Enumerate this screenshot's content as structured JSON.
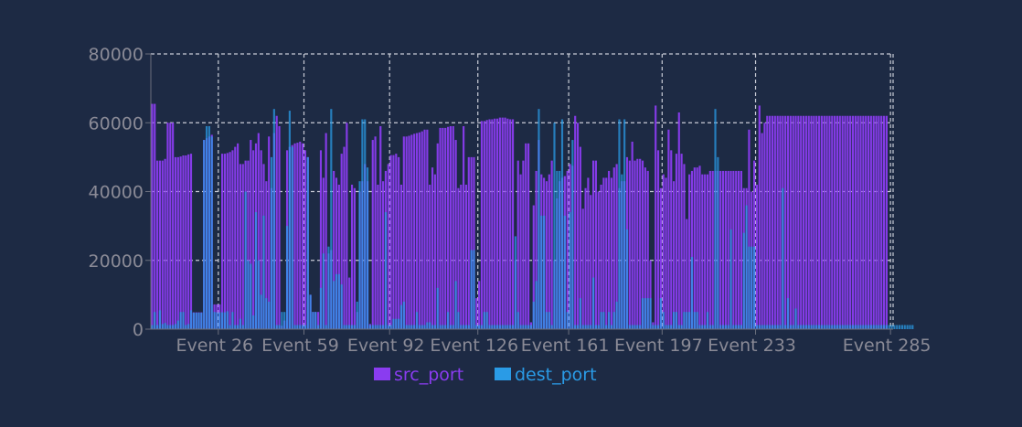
{
  "chart_data": {
    "type": "bar",
    "grid": true,
    "legend_position": "bottom-center",
    "ylim": [
      0,
      80000
    ],
    "y_ticks": [
      0,
      20000,
      40000,
      60000,
      80000
    ],
    "x_tick_labels": [
      "Event 26",
      "Event 59",
      "Event 92",
      "Event 126",
      "Event 161",
      "Event 197",
      "Event 233",
      "Event 285"
    ],
    "x_tick_index": [
      26,
      59,
      92,
      126,
      161,
      197,
      233,
      285
    ],
    "event_count": 286,
    "series": [
      {
        "name": "src_port",
        "color": "#8a3cf0",
        "values": [
          65500,
          65500,
          49000,
          49000,
          49000,
          49500,
          60000,
          60000,
          60000,
          50000,
          50000,
          50200,
          50500,
          50500,
          50800,
          51000,
          4900,
          4900,
          4900,
          4900,
          55000,
          55500,
          56000,
          56500,
          7200,
          7200,
          7200,
          51000,
          51000,
          51200,
          51500,
          52000,
          53000,
          54000,
          48000,
          48000,
          49000,
          49000,
          55000,
          52000,
          54000,
          57000,
          52000,
          48000,
          43000,
          56000,
          41000,
          57000,
          62000,
          59000,
          1000,
          2500,
          52000,
          53000,
          53500,
          54000,
          54200,
          54500,
          54000,
          52000,
          50000,
          10000,
          5000,
          5000,
          5000,
          52000,
          44000,
          57000,
          22000,
          23000,
          46000,
          44000,
          42000,
          51000,
          53000,
          60000,
          15000,
          42000,
          41000,
          5000,
          40000,
          43000,
          48000,
          43000,
          1500,
          55000,
          56000,
          42000,
          59000,
          43000,
          46000,
          48000,
          50600,
          50600,
          51000,
          50000,
          42000,
          56000,
          56000,
          56200,
          56500,
          56800,
          57000,
          57200,
          57500,
          58000,
          58000,
          42000,
          47000,
          45000,
          54000,
          58500,
          58500,
          58500,
          58800,
          59000,
          59000,
          55000,
          41000,
          42000,
          59000,
          42000,
          50000,
          50000,
          50000,
          9000,
          14000,
          60500,
          60500,
          60800,
          61000,
          61000,
          61200,
          61200,
          61500,
          61500,
          61500,
          61200,
          61000,
          61000,
          20000,
          49000,
          45000,
          49000,
          54000,
          54000,
          2000,
          36000,
          46000,
          55000,
          45000,
          44000,
          43000,
          45000,
          49000,
          20000,
          38000,
          43000,
          44000,
          44500,
          46000,
          48000,
          47500,
          62000,
          60000,
          53000,
          35000,
          41000,
          44000,
          39000,
          49000,
          49000,
          40000,
          42000,
          44000,
          44000,
          46000,
          44000,
          47000,
          48000,
          41000,
          43000,
          43000,
          50000,
          49000,
          54500,
          49000,
          49500,
          49500,
          49000,
          47000,
          46000,
          20000,
          2000,
          65000,
          52000,
          41000,
          45000,
          44000,
          58000,
          52000,
          43000,
          51000,
          63000,
          51000,
          48000,
          32000,
          45000,
          46000,
          47000,
          47000,
          47500,
          45000,
          45000,
          45000,
          46000,
          46000,
          46000,
          46000,
          46000,
          46000,
          46000,
          46000,
          46000,
          46000,
          46000,
          46000,
          46000,
          41000,
          41000,
          58000,
          40000,
          49000,
          42000,
          65000,
          57000,
          60000,
          62000,
          62000,
          62000,
          62000,
          62000,
          62000,
          62000,
          62000,
          62000,
          62000,
          62000,
          62000,
          62000,
          62000,
          62000,
          62000,
          62000,
          62000,
          62000,
          62000,
          62000,
          62000,
          62000,
          62000,
          62000,
          62000,
          62000,
          62000,
          62000,
          62000,
          62000,
          62000,
          62000,
          62000,
          62000,
          62000,
          62000,
          62000,
          62000,
          62000,
          62000,
          62000,
          62000,
          62000,
          62000,
          62000,
          62000
        ]
      },
      {
        "name": "dest_port",
        "color": "#2a9be6",
        "values": [
          1200,
          5000,
          1200,
          5500,
          1500,
          1800,
          1200,
          1200,
          1200,
          1500,
          2500,
          5000,
          5000,
          1200,
          1500,
          5500,
          4800,
          4800,
          4800,
          4800,
          55000,
          59000,
          59000,
          56000,
          5000,
          4900,
          4900,
          4900,
          4900,
          5200,
          1200,
          5000,
          1200,
          1200,
          3000,
          1200,
          40000,
          20000,
          19000,
          4000,
          34000,
          20000,
          10000,
          33000,
          9000,
          8000,
          50000,
          64000,
          1200,
          1200,
          5000,
          5000,
          30000,
          63500,
          53000,
          1200,
          1200,
          1200,
          1200,
          1200,
          50000,
          10000,
          5000,
          5000,
          1200,
          12000,
          22000,
          1200,
          24000,
          64000,
          14000,
          16000,
          16000,
          13000,
          1200,
          1200,
          1200,
          1200,
          1200,
          8000,
          43000,
          61000,
          61000,
          47000,
          1200,
          1200,
          1200,
          1200,
          1200,
          1200,
          34000,
          1200,
          1200,
          3000,
          3000,
          3000,
          7000,
          8000,
          1200,
          1200,
          1200,
          1200,
          5000,
          1200,
          1200,
          1200,
          2000,
          2000,
          1200,
          1200,
          12000,
          1200,
          1200,
          1200,
          5000,
          1200,
          1200,
          14000,
          5000,
          1200,
          1200,
          1200,
          1200,
          23000,
          23000,
          1200,
          1200,
          1200,
          5000,
          5000,
          1200,
          1200,
          1200,
          1200,
          1200,
          1200,
          1200,
          1200,
          1200,
          1200,
          27000,
          5000,
          1200,
          1200,
          1200,
          1200,
          1200,
          8000,
          14000,
          64000,
          33000,
          33000,
          5000,
          5000,
          1200,
          60000,
          46000,
          46000,
          61000,
          33000,
          5000,
          34000,
          55000,
          1200,
          1200,
          9000,
          1200,
          1200,
          1200,
          1200,
          15000,
          1200,
          1200,
          5000,
          5000,
          1200,
          5000,
          1200,
          5000,
          8000,
          61000,
          45000,
          61000,
          29000,
          1200,
          1200,
          1200,
          1200,
          1200,
          9000,
          9000,
          9000,
          9000,
          1200,
          1200,
          1200,
          9000,
          5000,
          1200,
          1200,
          1200,
          5000,
          5000,
          1200,
          1200,
          5000,
          5000,
          5000,
          21000,
          5000,
          5000,
          1200,
          1200,
          1200,
          5000,
          1200,
          1200,
          64000,
          50000,
          1200,
          1200,
          1200,
          1200,
          29000,
          1200,
          1200,
          1200,
          1200,
          28000,
          36000,
          24000,
          24000,
          24000,
          1200,
          1200,
          1200,
          1200,
          1200,
          1200,
          1200,
          1200,
          1200,
          1200,
          41000,
          1200,
          9000,
          1200,
          1200,
          6000,
          1200,
          1200,
          1200,
          1200,
          1200,
          1200,
          1200,
          1200,
          1200,
          1200,
          1200,
          1200,
          1200,
          1200,
          1200,
          1200,
          1200,
          1200,
          1200,
          1200,
          1200,
          1200,
          1200,
          1200,
          1200,
          1200,
          1200,
          1200,
          1200,
          1200,
          1200,
          1200,
          1200,
          1200,
          1200,
          1200,
          1200,
          1200,
          1200,
          1200,
          1200,
          1200,
          1200,
          1200,
          1200
        ]
      }
    ]
  }
}
